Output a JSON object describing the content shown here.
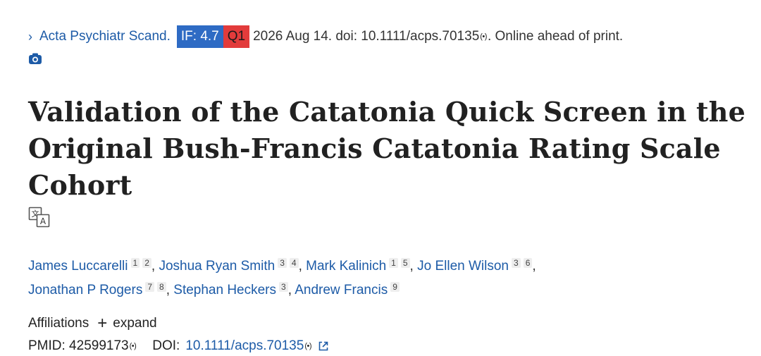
{
  "citation": {
    "journal": "Acta Psychiatr Scand.",
    "impact_factor": "IF: 4.7",
    "quartile": "Q1",
    "date_doi": "2026 Aug 14. doi: 10.1111/acps.70135",
    "status": ". Online ahead of print.",
    "colors": {
      "link": "#1d5ba7",
      "if_badge": "#2e6bc4",
      "q_badge": "#e23b3b"
    }
  },
  "title": "Validation of the Catatonia Quick Screen in the Original Bush-Francis Catatonia Rating Scale Cohort",
  "authors": [
    {
      "name": "James Luccarelli",
      "affs": [
        "1",
        "2"
      ]
    },
    {
      "name": "Joshua Ryan Smith",
      "affs": [
        "3",
        "4"
      ]
    },
    {
      "name": "Mark Kalinich",
      "affs": [
        "1",
        "5"
      ]
    },
    {
      "name": "Jo Ellen Wilson",
      "affs": [
        "3",
        "6"
      ]
    },
    {
      "name": "Jonathan P Rogers",
      "affs": [
        "7",
        "8"
      ]
    },
    {
      "name": "Stephan Heckers",
      "affs": [
        "3"
      ]
    },
    {
      "name": "Andrew Francis",
      "affs": [
        "9"
      ]
    }
  ],
  "affiliations": {
    "label": "Affiliations",
    "expand_label": "expand"
  },
  "ids": {
    "pmid_label": "PMID: 42599173",
    "doi_label": "DOI:",
    "doi_value": "10.1111/acps.70135"
  },
  "icons": [
    "chevron-right-icon",
    "signal-icon",
    "camera-icon",
    "translate-icon",
    "plus-icon",
    "external-link-icon"
  ]
}
